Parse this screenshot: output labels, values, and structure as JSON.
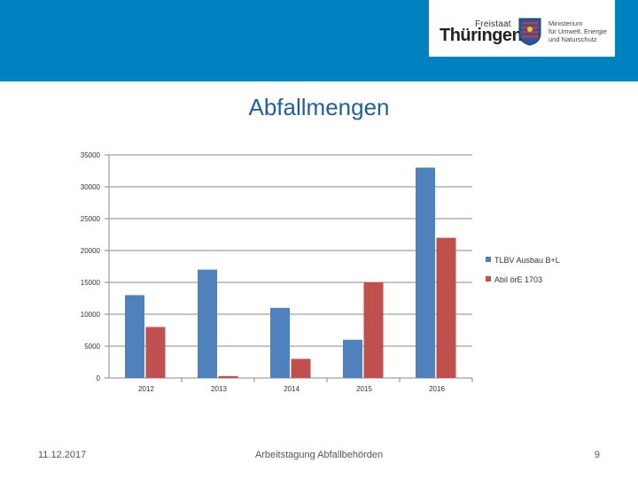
{
  "header": {
    "logo_state": "Freistaat",
    "logo_name": "Thüringen",
    "ministry_lines": [
      "Ministerium",
      "für Umwelt, Energie",
      "und Naturschutz"
    ]
  },
  "slide": {
    "title": "Abfallmengen"
  },
  "chart_data": {
    "type": "bar",
    "categories": [
      "2012",
      "2013",
      "2014",
      "2015",
      "2016"
    ],
    "series": [
      {
        "name": "TLBV Ausbau B+L",
        "color": "#4f81bd",
        "values": [
          13000,
          17000,
          11000,
          6000,
          33000
        ]
      },
      {
        "name": "Abil örE 1703",
        "color": "#c0504d",
        "values": [
          8000,
          300,
          3000,
          15000,
          22000
        ]
      }
    ],
    "ylim": [
      0,
      35000
    ],
    "yticks": [
      "0",
      "5000",
      "10000",
      "15000",
      "20000",
      "25000",
      "30000",
      "35000"
    ],
    "grid": true,
    "legend": "right"
  },
  "footer": {
    "date": "11.12.2017",
    "center": "Arbeitstagung Abfallbehörden",
    "page": "9"
  }
}
